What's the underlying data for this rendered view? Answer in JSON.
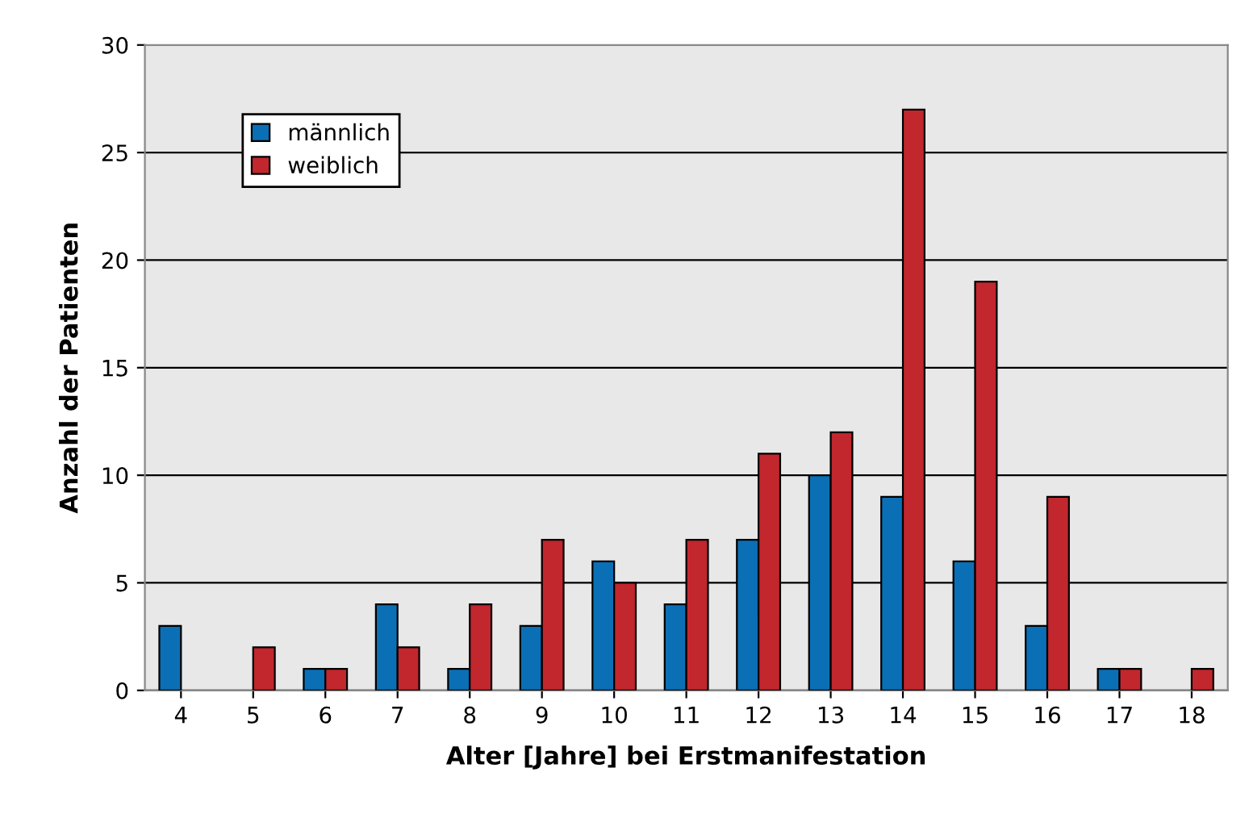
{
  "chart_data": {
    "type": "bar",
    "xlabel": "Alter [Jahre] bei Erstmanifestation",
    "ylabel": "Anzahl der Patienten",
    "categories": [
      "4",
      "5",
      "6",
      "7",
      "8",
      "9",
      "10",
      "11",
      "12",
      "13",
      "14",
      "15",
      "16",
      "17",
      "18"
    ],
    "series": [
      {
        "name": "männlich",
        "color": "#0b6fb5",
        "values": [
          3,
          0,
          1,
          4,
          1,
          3,
          6,
          4,
          7,
          10,
          9,
          6,
          3,
          1,
          0
        ]
      },
      {
        "name": "weiblich",
        "color": "#c1272d",
        "values": [
          0,
          2,
          1,
          2,
          4,
          7,
          5,
          7,
          11,
          12,
          27,
          19,
          9,
          1,
          1
        ]
      }
    ],
    "ylim": [
      0,
      30
    ],
    "yticks": [
      0,
      5,
      10,
      15,
      20,
      25,
      30
    ],
    "grid": "y",
    "legend": "top left"
  }
}
